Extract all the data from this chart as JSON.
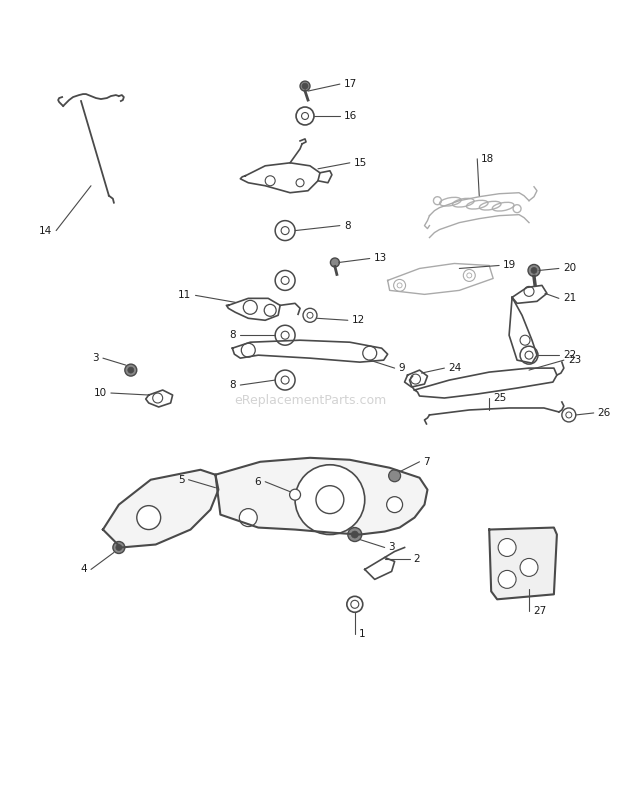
{
  "background_color": "#ffffff",
  "watermark": "eReplacementParts.com",
  "watermark_color": "#c8c8c8",
  "fig_width": 6.2,
  "fig_height": 8.02,
  "dpi": 100,
  "part_color": "#4a4a4a",
  "label_color": "#1a1a1a",
  "label_fontsize": 7.5,
  "callout_lw": 0.8
}
